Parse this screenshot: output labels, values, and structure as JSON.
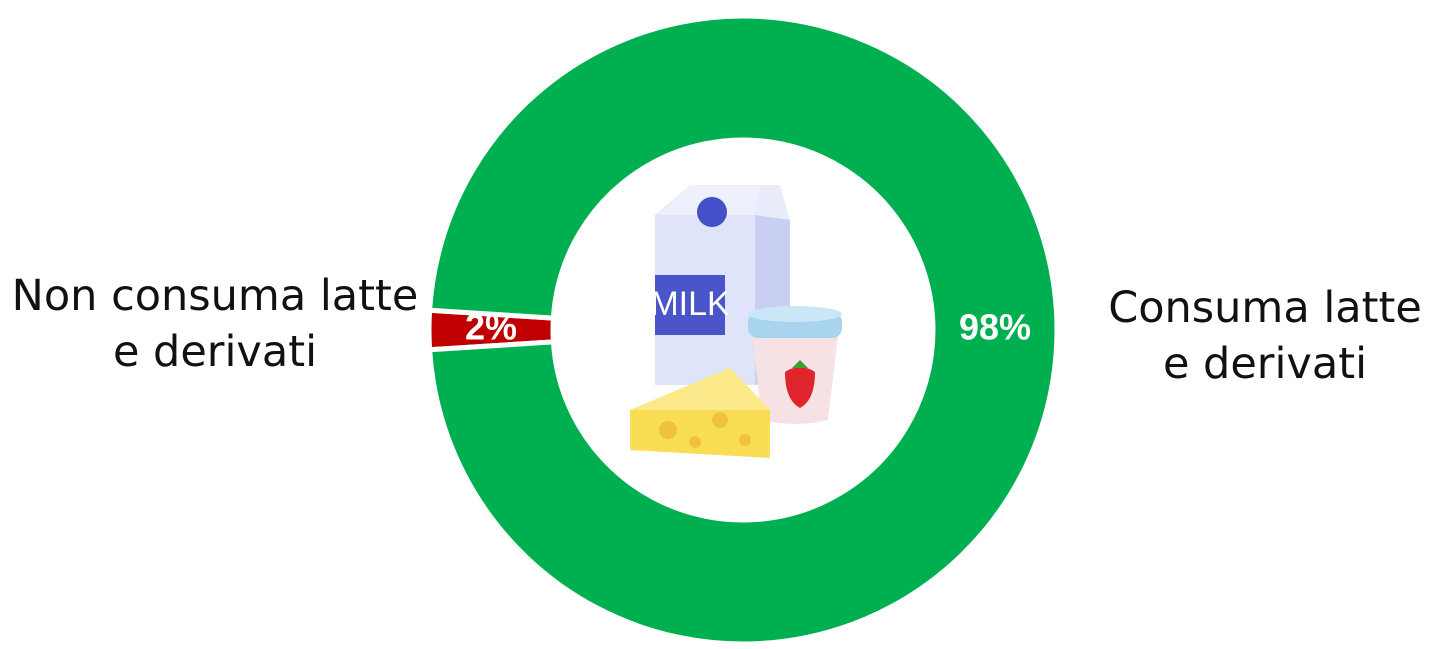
{
  "chart_data": {
    "type": "donut",
    "categories": [
      "Non consuma latte e derivati",
      "Consuma latte e derivati"
    ],
    "values": [
      2,
      98
    ],
    "value_labels": [
      "2%",
      "98%"
    ],
    "colors": [
      "#c00000",
      "#00b050"
    ]
  }
}
